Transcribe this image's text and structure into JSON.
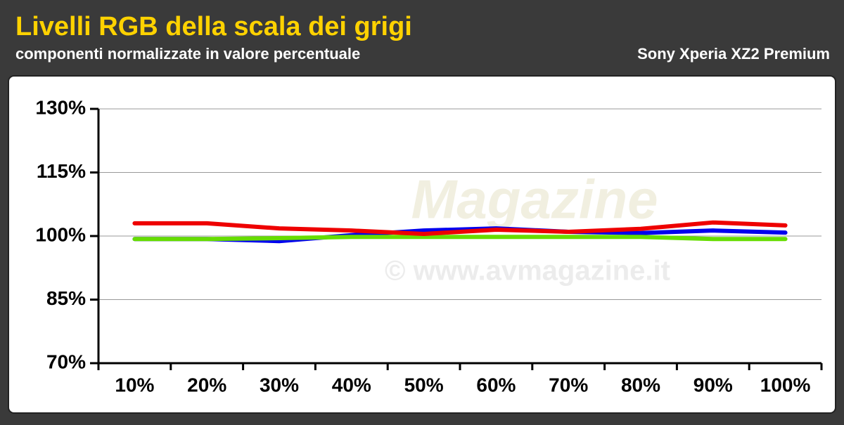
{
  "chart_data": {
    "type": "line",
    "title": "Livelli RGB della scala dei grigi",
    "subtitle": "componenti normalizzate in valore percentuale",
    "device": "Sony Xperia XZ2 Premium",
    "watermark": {
      "logo": "Magazine",
      "text": "© www.avmagazine.it"
    },
    "categories": [
      "10%",
      "20%",
      "30%",
      "40%",
      "50%",
      "60%",
      "70%",
      "80%",
      "90%",
      "100%"
    ],
    "series": [
      {
        "color": "#0000ee",
        "values": [
          99.3,
          99.3,
          98.8,
          100.2,
          101.3,
          101.8,
          101,
          100.7,
          101.3,
          100.8
        ]
      },
      {
        "color": "#66dd00",
        "values": [
          99.3,
          99.3,
          99.5,
          99.8,
          99.8,
          99.8,
          99.8,
          99.8,
          99.3,
          99.3
        ]
      },
      {
        "color": "#ee0000",
        "values": [
          103,
          103,
          101.8,
          101.3,
          100.5,
          101.5,
          101,
          101.7,
          103.2,
          102.5
        ]
      }
    ],
    "ylim": [
      70,
      130
    ],
    "yticks": [
      {
        "value": 70,
        "label": "70%"
      },
      {
        "value": 85,
        "label": "85%"
      },
      {
        "value": 100,
        "label": "100%"
      },
      {
        "value": 115,
        "label": "115%"
      },
      {
        "value": 130,
        "label": "130%"
      }
    ],
    "grid": true
  }
}
